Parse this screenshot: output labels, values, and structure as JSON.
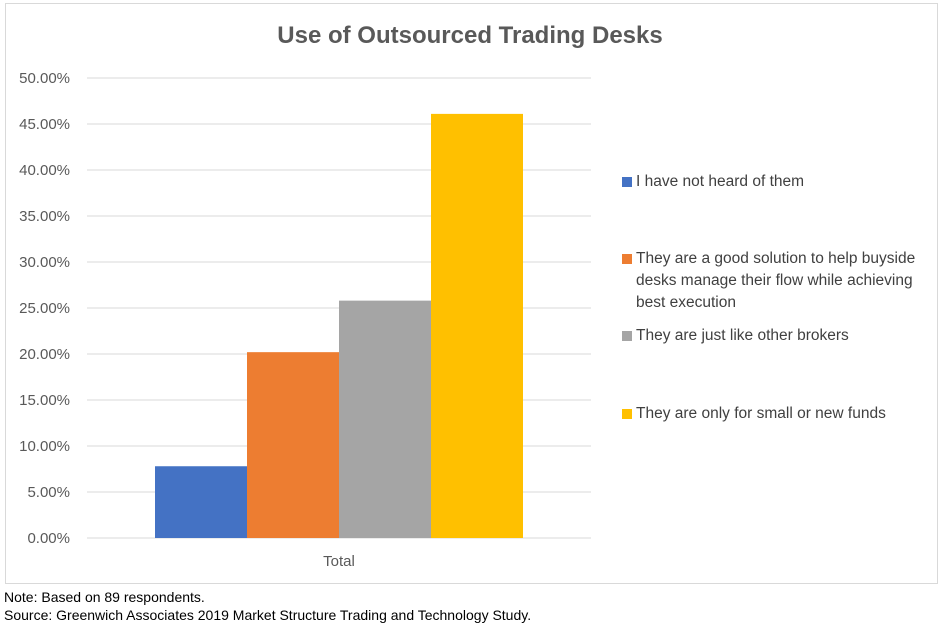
{
  "chart_data": {
    "type": "bar",
    "title": "Use of Outsourced Trading Desks",
    "categories": [
      "Total"
    ],
    "series": [
      {
        "name": "I have not heard of them",
        "values": [
          0.078
        ],
        "color": "#4472C4"
      },
      {
        "name": "They are a good solution to help buyside desks manage their flow while achieving best execution",
        "values": [
          0.202
        ],
        "color": "#ED7D31"
      },
      {
        "name": "They are just like other brokers",
        "values": [
          0.258
        ],
        "color": "#A5A5A5"
      },
      {
        "name": "They are only for small or new funds",
        "values": [
          0.461
        ],
        "color": "#FFC000"
      }
    ],
    "y_ticks": [
      "0.00%",
      "5.00%",
      "10.00%",
      "15.00%",
      "20.00%",
      "25.00%",
      "30.00%",
      "35.00%",
      "40.00%",
      "45.00%",
      "50.00%"
    ],
    "ylim": [
      0,
      0.5
    ],
    "xlabel": "",
    "ylabel": "",
    "grid": true,
    "legend_position": "right"
  },
  "notes": {
    "note": "Note: Based on 89 respondents.",
    "source": "Source: Greenwich Associates 2019 Market Structure Trading and Technology Study."
  }
}
